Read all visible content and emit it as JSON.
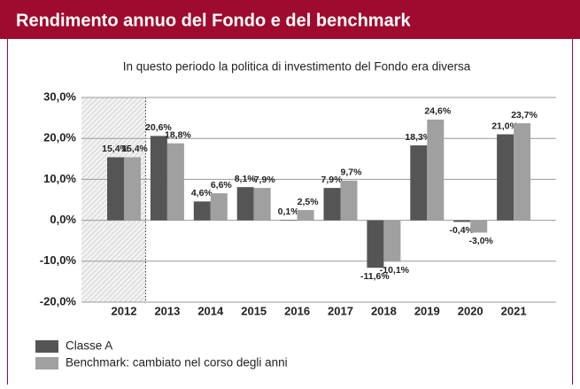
{
  "chart_data": {
    "type": "bar",
    "title": "Rendimento annuo del Fondo e del benchmark",
    "subtitle": "In questo periodo la politica di investimento del Fondo era diversa",
    "categories": [
      "2012",
      "2013",
      "2014",
      "2015",
      "2016",
      "2017",
      "2018",
      "2019",
      "2020",
      "2021"
    ],
    "series": [
      {
        "name": "Classe A",
        "color": "#555555",
        "values": [
          15.4,
          20.6,
          4.6,
          8.1,
          0.1,
          7.9,
          -11.6,
          18.3,
          -0.4,
          21.0
        ],
        "value_labels": [
          "15,4%",
          "20,6%",
          "4,6%",
          "8,1%",
          "0,1%",
          "7,9%",
          "-11,6%",
          "18,3%",
          "-0,4%",
          "21,0%"
        ]
      },
      {
        "name": "Benchmark: cambiato nel corso degli anni",
        "color": "#a0a0a0",
        "values": [
          15.4,
          18.8,
          6.6,
          7.9,
          2.5,
          9.7,
          -10.1,
          24.6,
          -3.0,
          23.7
        ],
        "value_labels": [
          "15,4%",
          "18,8%",
          "6,6%",
          "7,9%",
          "2,5%",
          "9,7%",
          "-10,1%",
          "24,6%",
          "-3,0%",
          "23,7%"
        ]
      }
    ],
    "ylim": [
      -20,
      30
    ],
    "yticks": [
      {
        "value": -20,
        "label": "-20,0%"
      },
      {
        "value": -10,
        "label": "-10,0%"
      },
      {
        "value": 0,
        "label": "0,0%"
      },
      {
        "value": 10,
        "label": "10,0%"
      },
      {
        "value": 20,
        "label": "20,0%"
      },
      {
        "value": 30,
        "label": "30,0%"
      }
    ],
    "grid": true
  }
}
